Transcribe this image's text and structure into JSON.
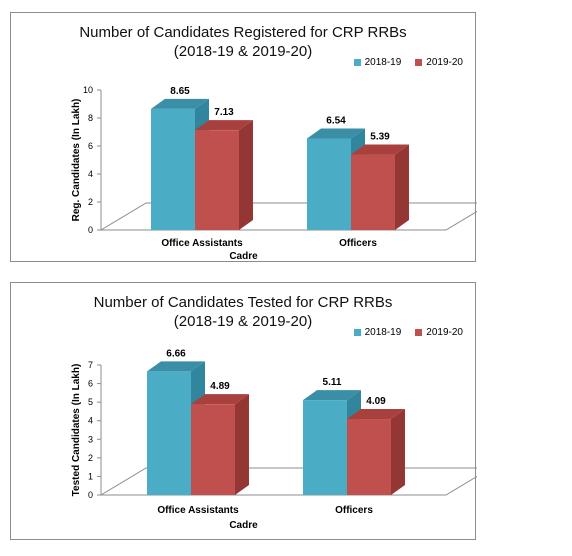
{
  "colors": {
    "series_2018_19": "#4bacc6",
    "series_2019_20": "#c0504d"
  },
  "chart_data": [
    {
      "type": "bar",
      "title_line1": "Number of Candidates Registered for CRP RRBs",
      "title_line2": "(2018-19 & 2019-20)",
      "xlabel": "Cadre",
      "ylabel": "Reg. Candidates (In Lakh)",
      "categories": [
        "Office Assistants",
        "Officers"
      ],
      "series": [
        {
          "name": "2018-19",
          "values": [
            8.65,
            6.54
          ],
          "labels": [
            "8.65",
            "6.54"
          ]
        },
        {
          "name": "2019-20",
          "values": [
            7.13,
            5.39
          ],
          "labels": [
            "7.13",
            "5.39"
          ]
        }
      ],
      "ylim": [
        0,
        10
      ],
      "yticks": [
        "0",
        "2",
        "4",
        "6",
        "8",
        "10"
      ],
      "legend_position": "top-right",
      "grid": false
    },
    {
      "type": "bar",
      "title_line1": "Number of Candidates Tested for CRP RRBs",
      "title_line2": "(2018-19 & 2019-20)",
      "xlabel": "Cadre",
      "ylabel": "Tested Candidates (In Lakh)",
      "categories": [
        "Office Assistants",
        "Officers"
      ],
      "series": [
        {
          "name": "2018-19",
          "values": [
            6.66,
            5.11
          ],
          "labels": [
            "6.66",
            "5.11"
          ]
        },
        {
          "name": "2019-20",
          "values": [
            4.89,
            4.09
          ],
          "labels": [
            "4.89",
            "4.09"
          ]
        }
      ],
      "ylim": [
        0,
        7
      ],
      "yticks": [
        "0",
        "1",
        "2",
        "3",
        "4",
        "5",
        "6",
        "7"
      ],
      "legend_position": "top-right",
      "grid": false
    }
  ]
}
